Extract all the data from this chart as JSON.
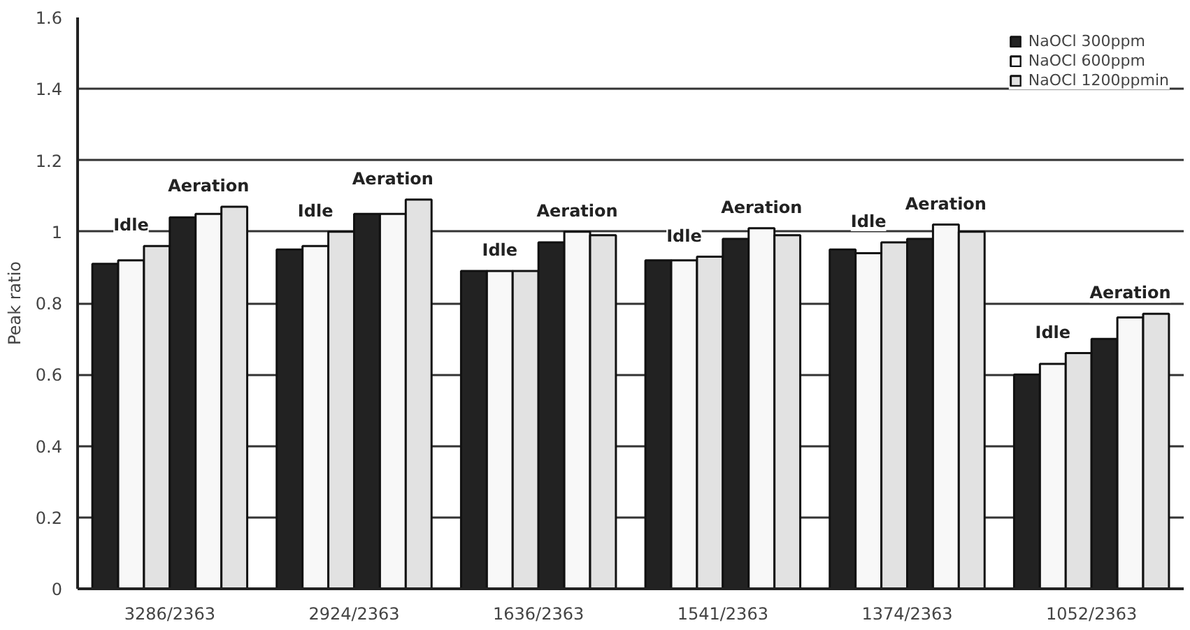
{
  "chart_data": {
    "type": "bar",
    "ylabel": "Peak ratio",
    "categories": [
      "3286/2363",
      "2924/2363",
      "1636/2363",
      "1541/2363",
      "1374/2363",
      "1052/2363"
    ],
    "series": [
      {
        "name": "NaOCl 300ppm",
        "color": "#222222",
        "values": [
          0.91,
          0.95,
          0.89,
          0.92,
          0.95,
          0.6
        ]
      },
      {
        "name": "NaOCl 600ppm",
        "color": "#f8f8f8",
        "values": [
          0.92,
          0.96,
          0.89,
          0.92,
          0.94,
          0.63
        ]
      },
      {
        "name": "NaOCl 1200ppmin",
        "color": "#e2e2e2",
        "values": [
          0.96,
          1.0,
          0.89,
          0.93,
          0.97,
          0.66
        ]
      },
      {
        "color": "#222222",
        "values": [
          1.04,
          1.05,
          0.97,
          0.98,
          0.98,
          0.7
        ]
      },
      {
        "color": "#f8f8f8",
        "values": [
          1.05,
          1.05,
          1.0,
          1.01,
          1.02,
          0.76
        ]
      },
      {
        "color": "#e2e2e2",
        "values": [
          1.07,
          1.09,
          0.99,
          0.99,
          1.0,
          0.77
        ]
      }
    ],
    "ylim": [
      0,
      1.6
    ],
    "yticks": [
      0,
      0.2,
      0.4,
      0.6,
      0.8,
      {
        "value": 1,
        "label": "1"
      },
      1.2,
      1.4,
      1.6
    ],
    "grid": "y",
    "legend": "top right",
    "annotations": [
      "Idle",
      "Aeration",
      "Idle",
      "Aeration",
      "Idle",
      "Aeration",
      "Idle",
      "Aeration",
      "Idle",
      "Aeration",
      "Idle",
      "Aeration"
    ]
  }
}
